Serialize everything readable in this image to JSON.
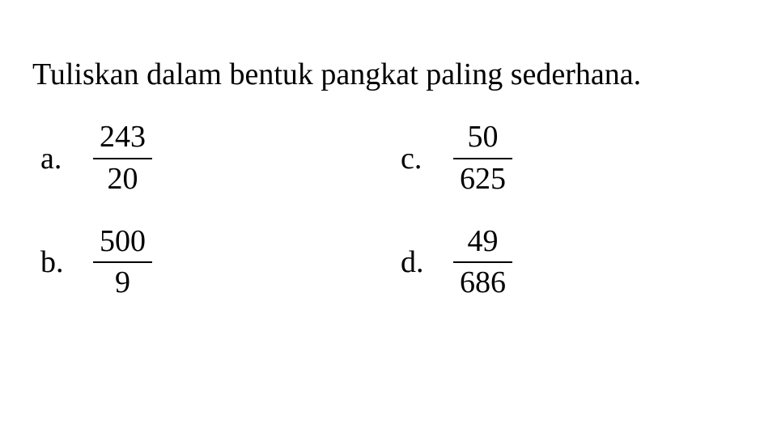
{
  "title": "Tuliskan dalam bentuk pangkat paling sederhana.",
  "problems": {
    "a": {
      "label": "a.",
      "numerator": "243",
      "denominator": "20"
    },
    "b": {
      "label": "b.",
      "numerator": "500",
      "denominator": "9"
    },
    "c": {
      "label": "c.",
      "numerator": "50",
      "denominator": "625"
    },
    "d": {
      "label": "d.",
      "numerator": "49",
      "denominator": "686"
    }
  },
  "style": {
    "background_color": "#ffffff",
    "text_color": "#000000",
    "font_family": "Times New Roman",
    "title_fontsize": 38,
    "problem_fontsize": 38,
    "fraction_line_width": 2.5
  }
}
